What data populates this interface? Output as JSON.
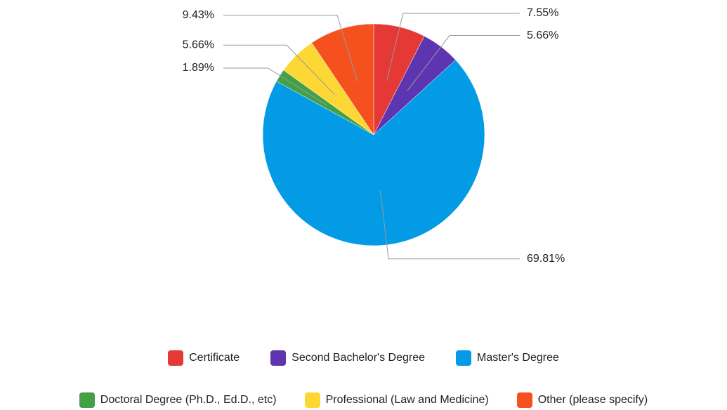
{
  "chart_data": {
    "type": "pie",
    "categories": [
      "Certificate",
      "Second Bachelor's Degree",
      "Master's Degree",
      "Doctoral Degree (Ph.D., Ed.D., etc)",
      "Professional (Law and Medicine)",
      "Other (please specify)"
    ],
    "values": [
      7.55,
      5.66,
      69.81,
      1.89,
      5.66,
      9.43
    ],
    "value_labels": [
      "7.55%",
      "5.66%",
      "69.81%",
      "1.89%",
      "5.66%",
      "9.43%"
    ],
    "colors": [
      "#e53935",
      "#5e35b1",
      "#039be5",
      "#43a047",
      "#fdd835",
      "#f4511e"
    ],
    "legend": "bottom"
  }
}
